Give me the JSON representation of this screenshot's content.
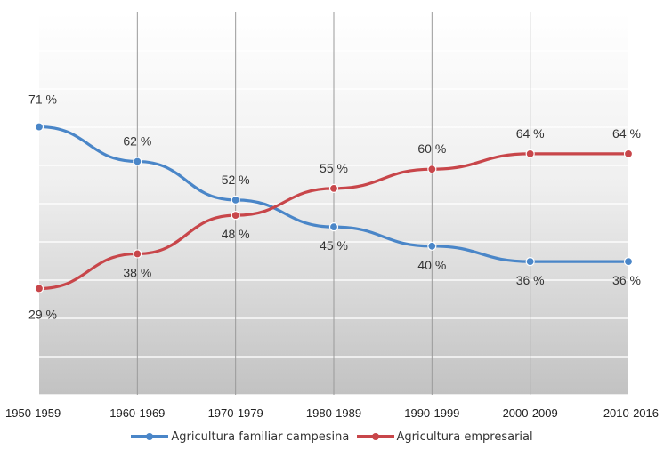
{
  "chart_data": {
    "type": "line",
    "title": "",
    "xlabel": "",
    "ylabel": "",
    "ylim": [
      0,
      100
    ],
    "grid": true,
    "legend_position": "bottom",
    "categories": [
      "1950-1959",
      "1960-1969",
      "1970-1979",
      "1980-1989",
      "1990-1999",
      "2000-2009",
      "2010-2016"
    ],
    "series": [
      {
        "name": "Agricultura familiar campesina",
        "color": "#4a86c8",
        "values": [
          71,
          62,
          52,
          45,
          40,
          36,
          36
        ],
        "labels": [
          "71 %",
          "62 %",
          "52 %",
          "45 %",
          "40 %",
          "36 %",
          "36 %"
        ]
      },
      {
        "name": "Agricultura empresarial",
        "color": "#c8464a",
        "values": [
          29,
          38,
          48,
          55,
          60,
          64,
          64
        ],
        "labels": [
          "29 %",
          "38 %",
          "48 %",
          "55 %",
          "60 %",
          "64 %",
          "64  %"
        ]
      }
    ]
  }
}
